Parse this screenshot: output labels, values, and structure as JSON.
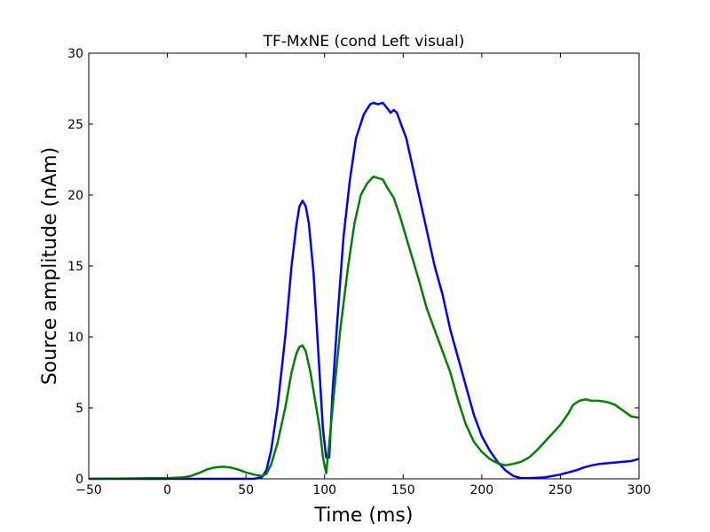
{
  "chart_data": {
    "type": "line",
    "title": "TF-MxNE (cond Left visual)",
    "xlabel": "Time (ms)",
    "ylabel": "Source amplitude (nAm)",
    "xlim": [
      -50,
      300
    ],
    "ylim": [
      0,
      30
    ],
    "xticks": [
      "−50",
      "0",
      "50",
      "100",
      "150",
      "200",
      "250",
      "300"
    ],
    "xtick_values": [
      -50,
      0,
      50,
      100,
      150,
      200,
      250,
      300
    ],
    "yticks": [
      "0",
      "5",
      "10",
      "15",
      "20",
      "25",
      "30"
    ],
    "ytick_values": [
      0,
      5,
      10,
      15,
      20,
      25,
      30
    ],
    "grid": false,
    "legend": "none",
    "series": [
      {
        "color": "#0000ff",
        "points": [
          [
            -50,
            0.0
          ],
          [
            0,
            0.0
          ],
          [
            55,
            0.0
          ],
          [
            60,
            0.1
          ],
          [
            63,
            0.6
          ],
          [
            66,
            2.0
          ],
          [
            70,
            5.0
          ],
          [
            75,
            10.0
          ],
          [
            79,
            15.0
          ],
          [
            82,
            17.8
          ],
          [
            84,
            19.2
          ],
          [
            86,
            19.6
          ],
          [
            88,
            19.2
          ],
          [
            90,
            18.0
          ],
          [
            93,
            14.5
          ],
          [
            96,
            9.0
          ],
          [
            99,
            3.5
          ],
          [
            101,
            1.5
          ],
          [
            103,
            1.5
          ],
          [
            105,
            6.0
          ],
          [
            108,
            11.0
          ],
          [
            112,
            17.0
          ],
          [
            116,
            21.0
          ],
          [
            120,
            24.0
          ],
          [
            125,
            25.7
          ],
          [
            129,
            26.4
          ],
          [
            131,
            26.5
          ],
          [
            134,
            26.4
          ],
          [
            137,
            26.5
          ],
          [
            140,
            26.1
          ],
          [
            142,
            25.8
          ],
          [
            144,
            26.0
          ],
          [
            146,
            25.8
          ],
          [
            148,
            25.2
          ],
          [
            152,
            24.0
          ],
          [
            156,
            22.0
          ],
          [
            160,
            20.0
          ],
          [
            165,
            17.5
          ],
          [
            170,
            15.0
          ],
          [
            175,
            13.0
          ],
          [
            180,
            10.5
          ],
          [
            185,
            8.5
          ],
          [
            190,
            6.5
          ],
          [
            195,
            4.5
          ],
          [
            200,
            3.0
          ],
          [
            205,
            2.0
          ],
          [
            210,
            1.2
          ],
          [
            215,
            0.6
          ],
          [
            220,
            0.2
          ],
          [
            225,
            0.05
          ],
          [
            230,
            0.05
          ],
          [
            240,
            0.1
          ],
          [
            245,
            0.2
          ],
          [
            250,
            0.3
          ],
          [
            255,
            0.45
          ],
          [
            260,
            0.6
          ],
          [
            265,
            0.8
          ],
          [
            270,
            0.95
          ],
          [
            275,
            1.05
          ],
          [
            280,
            1.1
          ],
          [
            285,
            1.15
          ],
          [
            290,
            1.2
          ],
          [
            295,
            1.25
          ],
          [
            300,
            1.4
          ]
        ]
      },
      {
        "color": "#008000",
        "points": [
          [
            -50,
            0.0
          ],
          [
            -30,
            0.02
          ],
          [
            -10,
            0.05
          ],
          [
            0,
            0.05
          ],
          [
            10,
            0.1
          ],
          [
            15,
            0.2
          ],
          [
            20,
            0.4
          ],
          [
            25,
            0.65
          ],
          [
            30,
            0.8
          ],
          [
            35,
            0.85
          ],
          [
            40,
            0.8
          ],
          [
            45,
            0.65
          ],
          [
            50,
            0.45
          ],
          [
            55,
            0.3
          ],
          [
            60,
            0.2
          ],
          [
            63,
            0.35
          ],
          [
            66,
            1.0
          ],
          [
            70,
            2.5
          ],
          [
            75,
            5.0
          ],
          [
            79,
            7.5
          ],
          [
            82,
            8.8
          ],
          [
            84,
            9.3
          ],
          [
            86,
            9.4
          ],
          [
            88,
            9.0
          ],
          [
            91,
            7.5
          ],
          [
            94,
            5.5
          ],
          [
            97,
            3.5
          ],
          [
            99,
            1.5
          ],
          [
            101,
            0.4
          ],
          [
            103,
            2.5
          ],
          [
            106,
            6.0
          ],
          [
            110,
            10.5
          ],
          [
            115,
            15.0
          ],
          [
            119,
            18.0
          ],
          [
            123,
            20.0
          ],
          [
            127,
            20.8
          ],
          [
            131,
            21.3
          ],
          [
            134,
            21.2
          ],
          [
            137,
            21.1
          ],
          [
            140,
            20.5
          ],
          [
            144,
            19.8
          ],
          [
            148,
            18.5
          ],
          [
            152,
            17.0
          ],
          [
            156,
            15.5
          ],
          [
            160,
            14.0
          ],
          [
            165,
            12.0
          ],
          [
            170,
            10.5
          ],
          [
            175,
            9.0
          ],
          [
            180,
            7.5
          ],
          [
            185,
            5.5
          ],
          [
            190,
            3.8
          ],
          [
            195,
            2.6
          ],
          [
            200,
            1.9
          ],
          [
            205,
            1.4
          ],
          [
            210,
            1.1
          ],
          [
            215,
            0.95
          ],
          [
            220,
            1.05
          ],
          [
            225,
            1.2
          ],
          [
            230,
            1.5
          ],
          [
            235,
            2.0
          ],
          [
            240,
            2.6
          ],
          [
            245,
            3.2
          ],
          [
            250,
            3.8
          ],
          [
            255,
            4.6
          ],
          [
            258,
            5.2
          ],
          [
            262,
            5.5
          ],
          [
            266,
            5.6
          ],
          [
            270,
            5.5
          ],
          [
            275,
            5.5
          ],
          [
            280,
            5.4
          ],
          [
            285,
            5.2
          ],
          [
            290,
            4.8
          ],
          [
            295,
            4.4
          ],
          [
            300,
            4.3
          ]
        ]
      }
    ]
  }
}
